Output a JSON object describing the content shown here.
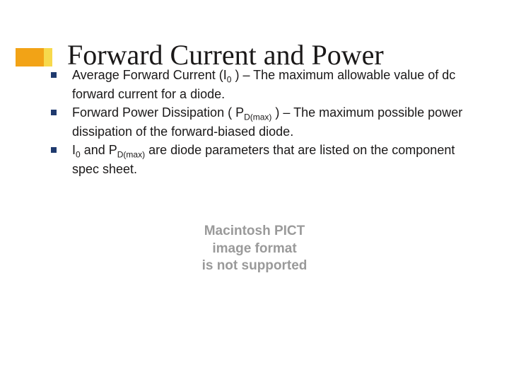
{
  "title": "Forward Current and Power",
  "accent": {
    "orange": "#f2a316",
    "yellow": "#f7d94c",
    "bullet": "#1f3a6e"
  },
  "bullets": [
    {
      "pre": "Average Forward Current (I",
      "sub1": "0",
      "mid1": " ) – The maximum allowable value of dc forward current for a diode."
    },
    {
      "pre": "Forward Power Dissipation ( P",
      "sub1": "D(max)",
      "mid1": " ) – The maximum possible power dissipation of the forward-biased diode."
    },
    {
      "pre": "I",
      "sub1": "0",
      "mid1": " and P",
      "sub2": "D(max)",
      "mid2": " are diode parameters that are listed on the component spec sheet."
    }
  ],
  "placeholder": {
    "line1": "Macintosh PICT",
    "line2": "image format",
    "line3": "is not supported"
  },
  "typography": {
    "title_fontsize": 40,
    "body_fontsize": 18,
    "sub_fontsize": 12,
    "placeholder_fontsize": 19
  },
  "colors": {
    "text": "#1a1818",
    "placeholder_text": "#9a9a9a",
    "background": "#ffffff"
  }
}
